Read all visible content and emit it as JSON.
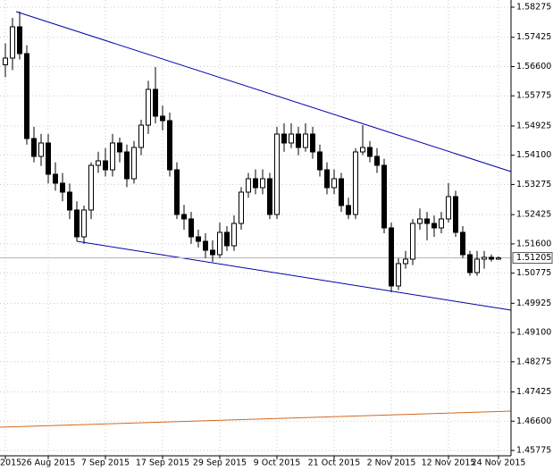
{
  "chart_data": {
    "type": "candlestick",
    "categories": [
      "2015",
      null,
      null,
      null,
      null,
      null,
      "26 Aug 2015",
      null,
      null,
      null,
      null,
      null,
      null,
      null,
      "7 Sep 2015",
      null,
      null,
      null,
      null,
      null,
      null,
      null,
      "17 Sep 2015",
      null,
      null,
      null,
      null,
      null,
      null,
      null,
      "29 Sep 2015",
      null,
      null,
      null,
      null,
      null,
      null,
      null,
      "9 Oct 2015",
      null,
      null,
      null,
      null,
      null,
      null,
      null,
      "21 Oct 2015",
      null,
      null,
      null,
      null,
      null,
      null,
      null,
      "2 Nov 2015",
      null,
      null,
      null,
      null,
      null,
      null,
      null,
      "12 Nov 2015",
      null,
      null,
      null,
      null,
      null,
      null,
      "24 Nov 2015"
    ],
    "open": [
      1.5665,
      1.56839,
      1.57721,
      1.56965,
      1.54571,
      1.54067,
      1.54445,
      1.53563,
      1.53311,
      1.53059,
      1.52555,
      1.51799,
      1.52555,
      1.53815,
      1.53941,
      1.53689,
      1.54445,
      1.54193,
      1.53437,
      1.54319,
      1.54949,
      1.55957,
      1.55201,
      1.55075,
      1.53689,
      1.52429,
      1.52303,
      1.51799,
      1.51673,
      1.51421,
      1.51295,
      1.51925,
      1.51547,
      1.52177,
      1.53059,
      1.53437,
      1.53185,
      1.53437,
      1.52429,
      1.54697,
      1.54445,
      1.54697,
      1.54319,
      1.54697,
      1.54193,
      1.53689,
      1.53185,
      1.53437,
      1.52681,
      1.52429,
      1.54193,
      1.54319,
      1.54067,
      1.53815,
      1.52051,
      1.50413,
      1.51043,
      1.51169,
      1.52177,
      1.52303,
      1.52177,
      1.52051,
      1.52303,
      1.52933,
      1.51925,
      1.51295,
      1.50791,
      1.51169,
      1.51221,
      1.51169
    ],
    "high": [
      1.5725,
      1.57973,
      1.58149,
      1.572,
      1.549,
      1.547,
      1.547,
      1.539,
      1.536,
      1.533,
      1.528,
      1.52681,
      1.539,
      1.542,
      1.543,
      1.547,
      1.546,
      1.544,
      1.545,
      1.551,
      1.562,
      1.56587,
      1.555,
      1.553,
      1.539,
      1.527,
      1.525,
      1.52,
      1.519,
      1.517,
      1.522,
      1.521,
      1.524,
      1.532,
      1.536,
      1.537,
      1.537,
      1.536,
      1.549,
      1.55,
      1.55,
      1.549,
      1.55,
      1.549,
      1.544,
      1.539,
      1.537,
      1.536,
      1.529,
      1.543,
      1.54949,
      1.545,
      1.543,
      1.54,
      1.522,
      1.512,
      1.514,
      1.523,
      1.526,
      1.525,
      1.524,
      1.525,
      1.53311,
      1.531,
      1.521,
      1.514,
      1.514,
      1.514,
      1.513,
      1.5125
    ],
    "low": [
      1.563,
      1.565,
      1.568,
      1.544,
      1.539,
      1.538,
      1.533,
      1.531,
      1.528,
      1.523,
      1.51673,
      1.516,
      1.523,
      1.536,
      1.535,
      1.535,
      1.539,
      1.532,
      1.533,
      1.541,
      1.547,
      1.55,
      1.548,
      1.535,
      1.523,
      1.52,
      1.516,
      1.515,
      1.512,
      1.51093,
      1.512,
      1.514,
      1.514,
      1.52,
      1.529,
      1.53,
      1.53,
      1.523,
      1.523,
      1.542,
      1.543,
      1.541,
      1.542,
      1.54,
      1.535,
      1.53,
      1.53,
      1.525,
      1.523,
      1.523,
      1.541,
      1.539,
      1.536,
      1.519,
      1.50237,
      1.503,
      1.509,
      1.51,
      1.52,
      1.517,
      1.518,
      1.519,
      1.522,
      1.518,
      1.512,
      1.507,
      1.507,
      1.509,
      1.511,
      1.5115
    ],
    "close": [
      1.56839,
      1.57721,
      1.56965,
      1.54571,
      1.54067,
      1.54445,
      1.53563,
      1.53311,
      1.53059,
      1.52555,
      1.51799,
      1.52555,
      1.53815,
      1.53941,
      1.53689,
      1.54445,
      1.54193,
      1.53437,
      1.54319,
      1.54949,
      1.55957,
      1.55201,
      1.55075,
      1.53689,
      1.52429,
      1.52303,
      1.51799,
      1.51673,
      1.51421,
      1.51295,
      1.51925,
      1.51547,
      1.52177,
      1.53059,
      1.53437,
      1.53185,
      1.53437,
      1.52429,
      1.54697,
      1.54445,
      1.54697,
      1.54319,
      1.54697,
      1.54193,
      1.53689,
      1.53185,
      1.53437,
      1.52681,
      1.52429,
      1.54193,
      1.54319,
      1.54067,
      1.53815,
      1.52051,
      1.50413,
      1.51043,
      1.51169,
      1.52177,
      1.52303,
      1.52177,
      1.52051,
      1.52303,
      1.52933,
      1.51925,
      1.51295,
      1.50791,
      1.51169,
      1.51221,
      1.51169,
      1.51205
    ],
    "up_color": "#ffffff",
    "down_color": "#000000",
    "xlim": [
      -0.75,
      70.75
    ],
    "ylim": [
      1.45624,
      1.58477
    ],
    "yticks": [
      1.58275,
      1.57425,
      {
        "value": 1.566,
        "label": "1.56600"
      },
      1.55775,
      1.54925,
      {
        "value": 1.541,
        "label": "1.54100"
      },
      1.53275,
      1.52425,
      {
        "value": 1.516,
        "label": "1.51600"
      },
      1.50775,
      1.49925,
      {
        "value": 1.491,
        "label": "1.49100"
      },
      1.48275,
      1.47425,
      {
        "value": 1.466,
        "label": "1.46600"
      },
      1.45775
    ],
    "grid": true,
    "last_price": 1.51205,
    "trendlines": [
      {
        "color": "#0000aa",
        "x": [
          1.5,
          70.75
        ],
        "values": [
          1.58149,
          1.53638
        ]
      },
      {
        "color": "#0000aa",
        "x": [
          10,
          70.75
        ],
        "values": [
          1.51672,
          1.49731
        ]
      },
      {
        "color": "#d2691e",
        "x": [
          -0.75,
          70.75
        ],
        "values": [
          1.4643,
          1.46884
        ]
      }
    ]
  }
}
